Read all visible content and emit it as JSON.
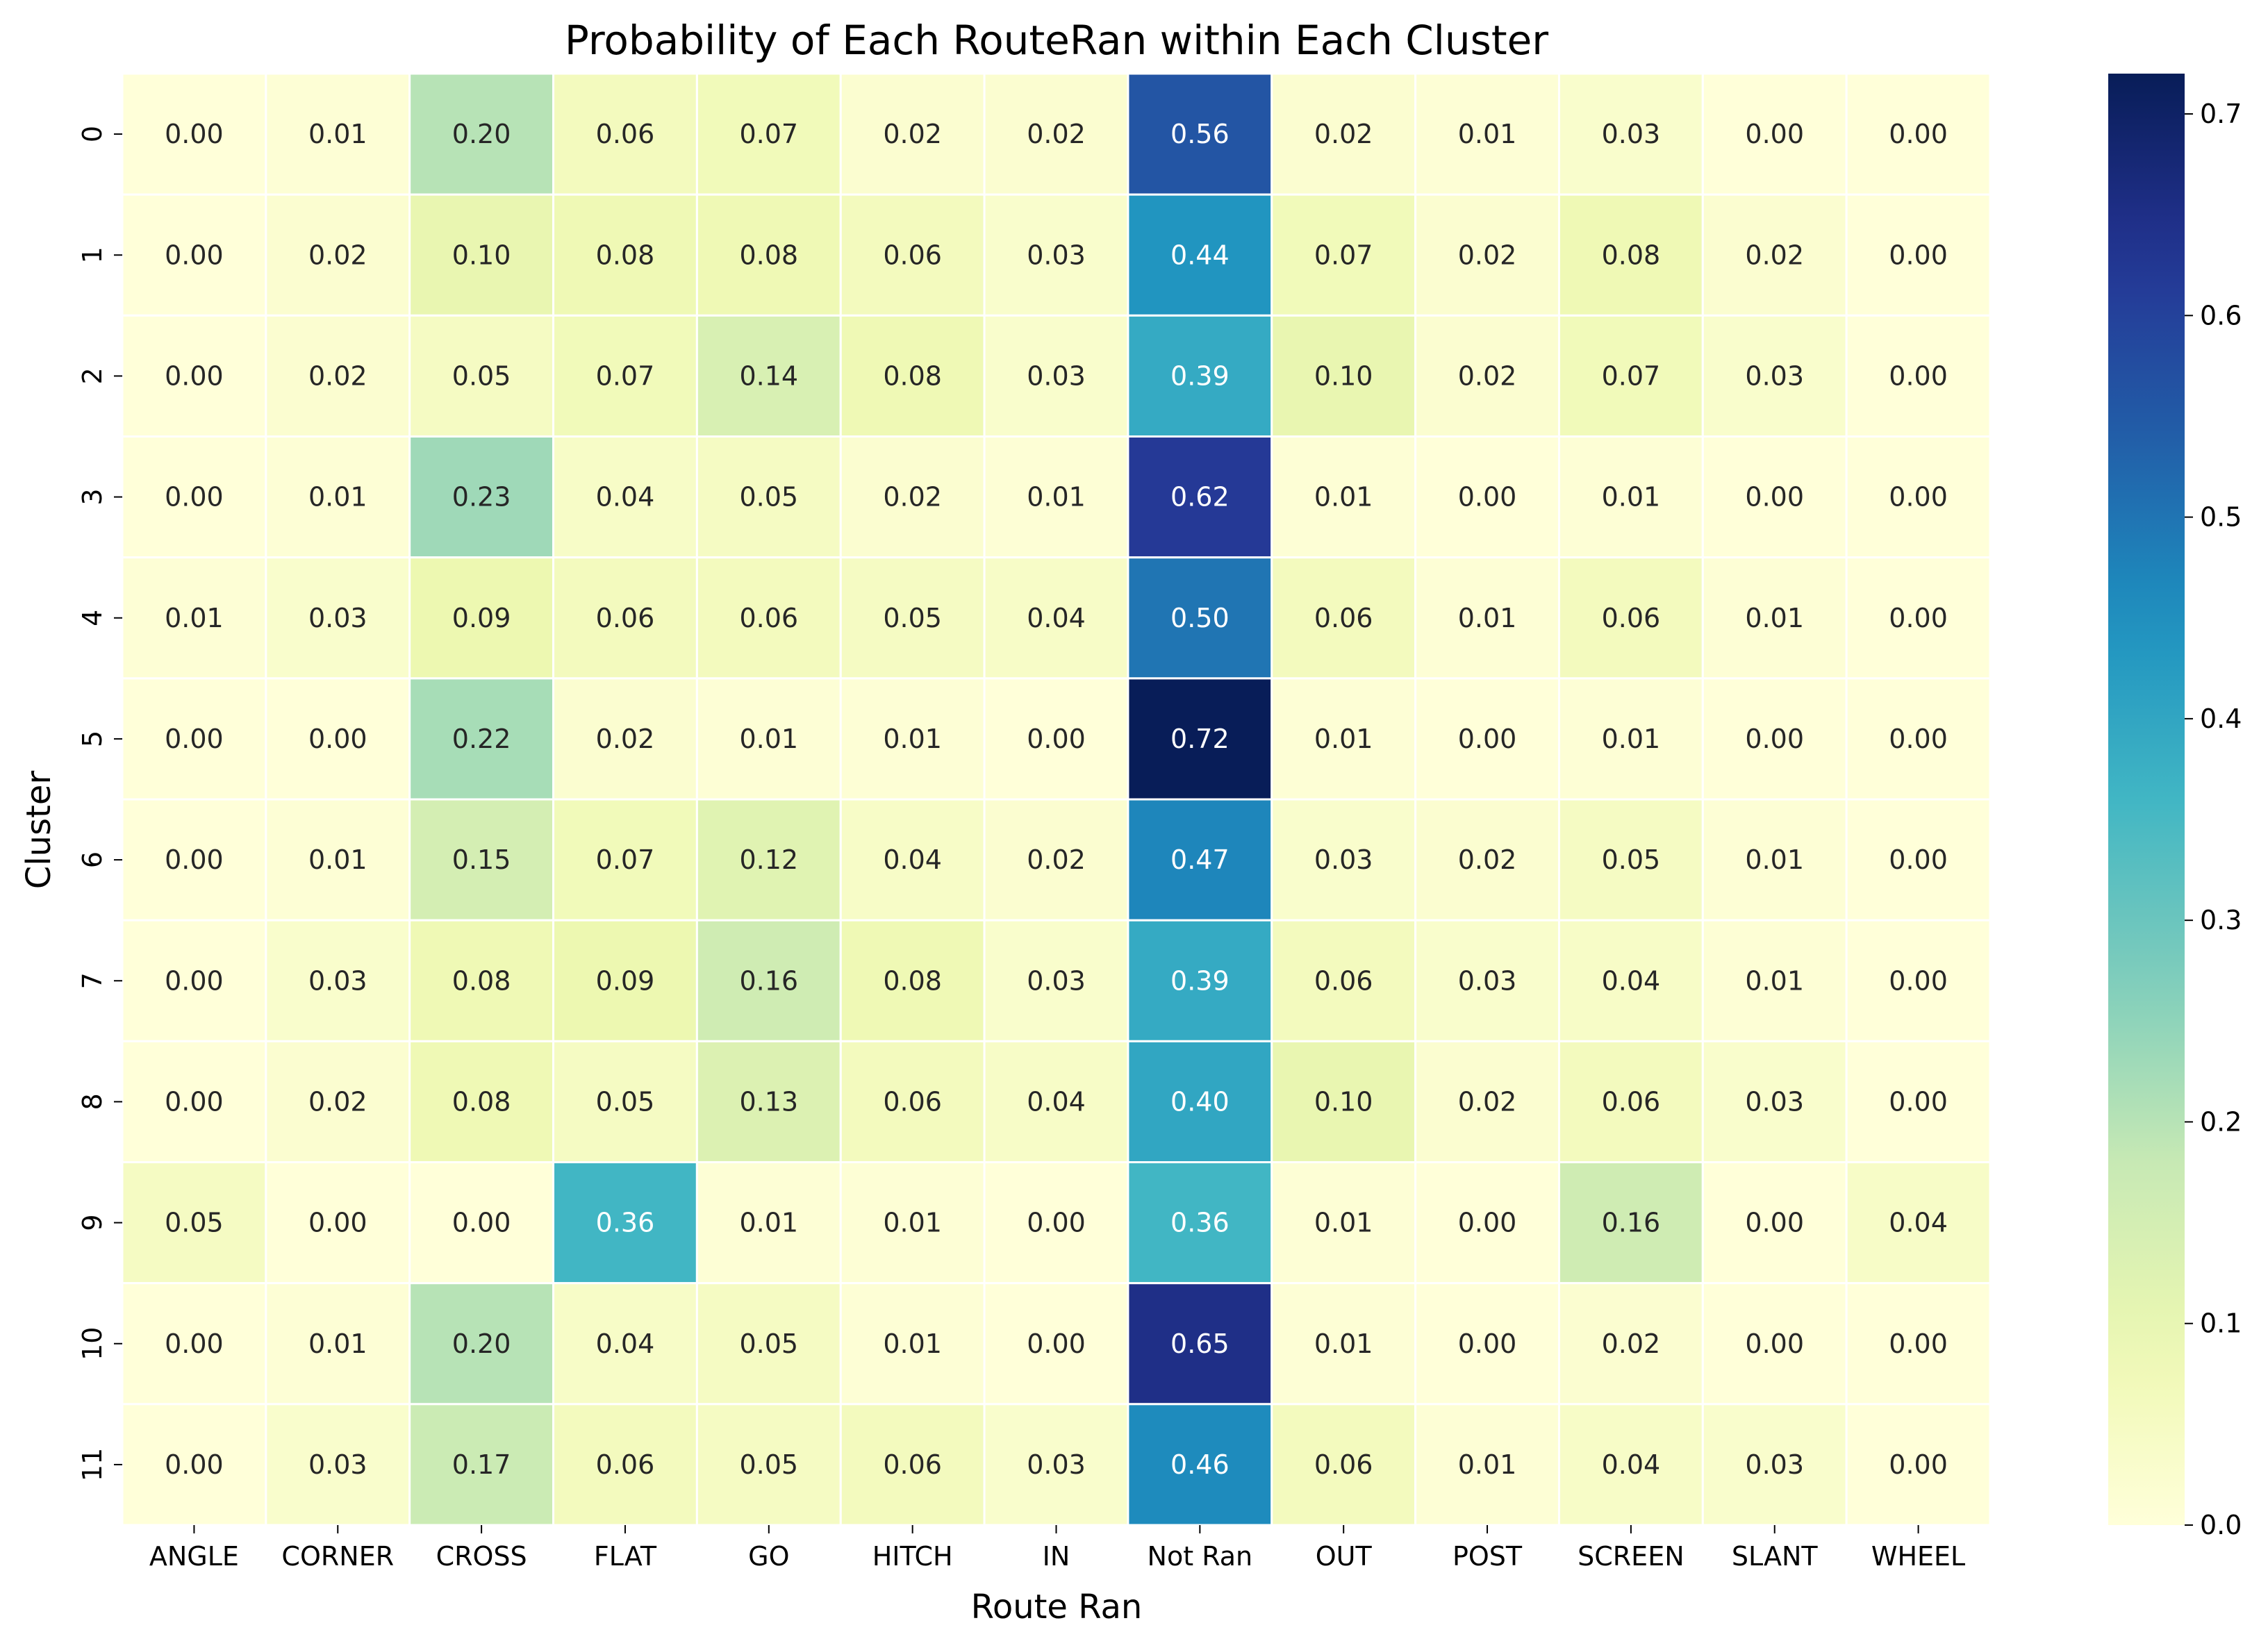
{
  "chart_data": {
    "type": "heatmap",
    "title": "Probability of Each RouteRan within Each Cluster",
    "xlabel": "Route Ran",
    "ylabel": "Cluster",
    "x_categories": [
      "ANGLE",
      "CORNER",
      "CROSS",
      "FLAT",
      "GO",
      "HITCH",
      "IN",
      "Not Ran",
      "OUT",
      "POST",
      "SCREEN",
      "SLANT",
      "WHEEL"
    ],
    "y_categories": [
      "0",
      "1",
      "2",
      "3",
      "4",
      "5",
      "6",
      "7",
      "8",
      "9",
      "10",
      "11"
    ],
    "values": [
      [
        0.0,
        0.01,
        0.2,
        0.06,
        0.07,
        0.02,
        0.02,
        0.56,
        0.02,
        0.01,
        0.03,
        0.0,
        0.0
      ],
      [
        0.0,
        0.02,
        0.1,
        0.08,
        0.08,
        0.06,
        0.03,
        0.44,
        0.07,
        0.02,
        0.08,
        0.02,
        0.0
      ],
      [
        0.0,
        0.02,
        0.05,
        0.07,
        0.14,
        0.08,
        0.03,
        0.39,
        0.1,
        0.02,
        0.07,
        0.03,
        0.0
      ],
      [
        0.0,
        0.01,
        0.23,
        0.04,
        0.05,
        0.02,
        0.01,
        0.62,
        0.01,
        0.0,
        0.01,
        0.0,
        0.0
      ],
      [
        0.01,
        0.03,
        0.09,
        0.06,
        0.06,
        0.05,
        0.04,
        0.5,
        0.06,
        0.01,
        0.06,
        0.01,
        0.0
      ],
      [
        0.0,
        0.0,
        0.22,
        0.02,
        0.01,
        0.01,
        0.0,
        0.72,
        0.01,
        0.0,
        0.01,
        0.0,
        0.0
      ],
      [
        0.0,
        0.01,
        0.15,
        0.07,
        0.12,
        0.04,
        0.02,
        0.47,
        0.03,
        0.02,
        0.05,
        0.01,
        0.0
      ],
      [
        0.0,
        0.03,
        0.08,
        0.09,
        0.16,
        0.08,
        0.03,
        0.39,
        0.06,
        0.03,
        0.04,
        0.01,
        0.0
      ],
      [
        0.0,
        0.02,
        0.08,
        0.05,
        0.13,
        0.06,
        0.04,
        0.4,
        0.1,
        0.02,
        0.06,
        0.03,
        0.0
      ],
      [
        0.05,
        0.0,
        0.0,
        0.36,
        0.01,
        0.01,
        0.0,
        0.36,
        0.01,
        0.0,
        0.16,
        0.0,
        0.04
      ],
      [
        0.0,
        0.01,
        0.2,
        0.04,
        0.05,
        0.01,
        0.0,
        0.65,
        0.01,
        0.0,
        0.02,
        0.0,
        0.0
      ],
      [
        0.0,
        0.03,
        0.17,
        0.06,
        0.05,
        0.06,
        0.03,
        0.46,
        0.06,
        0.01,
        0.04,
        0.03,
        0.0
      ]
    ],
    "value_format": "0.00",
    "colormap": "YlGnBu",
    "vmin": 0.0,
    "vmax": 0.72,
    "colorbar_ticks": [
      0.0,
      0.1,
      0.2,
      0.3,
      0.4,
      0.5,
      0.6,
      0.7
    ],
    "colorbar_tick_labels": [
      "0.0",
      "0.1",
      "0.2",
      "0.3",
      "0.4",
      "0.5",
      "0.6",
      "0.7"
    ],
    "grid": false,
    "legend": "colorbar-right"
  }
}
